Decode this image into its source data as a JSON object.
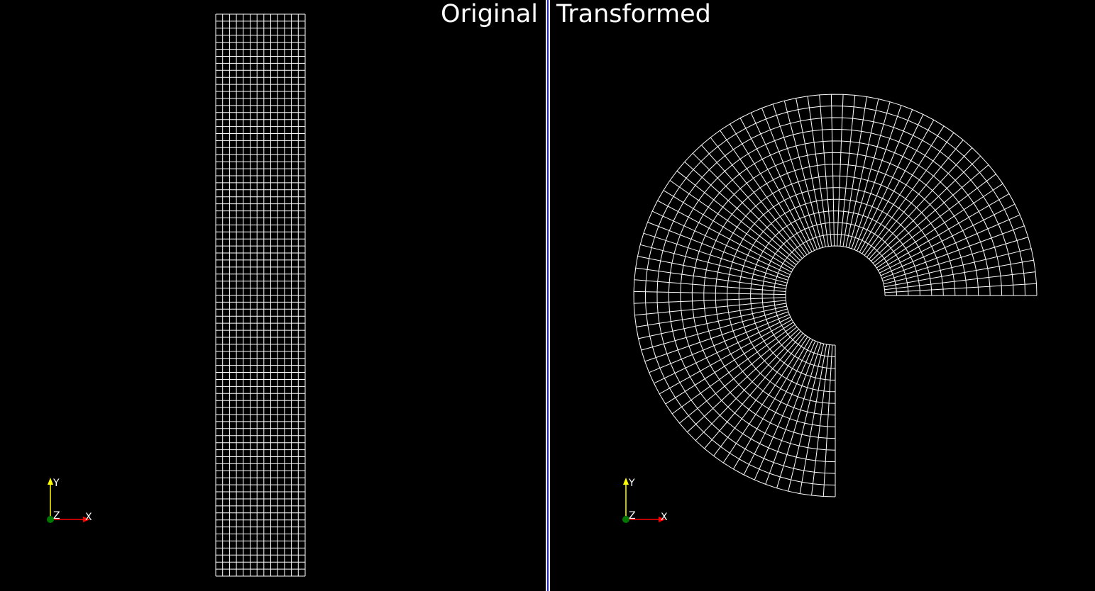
{
  "window": {
    "left_viewport_title": "Original",
    "right_viewport_title": "Transformed"
  },
  "colors": {
    "background": "#000000",
    "mesh": "#ffffff",
    "divider_white": "#ffffff",
    "divider_blue": "#1a1aff",
    "axis_x": "#ff0000",
    "axis_y": "#ffff00",
    "axis_z": "#007700"
  },
  "orientation_axes": {
    "x_label": "X",
    "y_label": "Y",
    "z_label": "Z"
  },
  "original_mesh": {
    "columns": 13,
    "rows": 80
  },
  "transformed_mesh": {
    "radial_divisions": 13,
    "angular_divisions": 80,
    "sweep_degrees": 270
  }
}
